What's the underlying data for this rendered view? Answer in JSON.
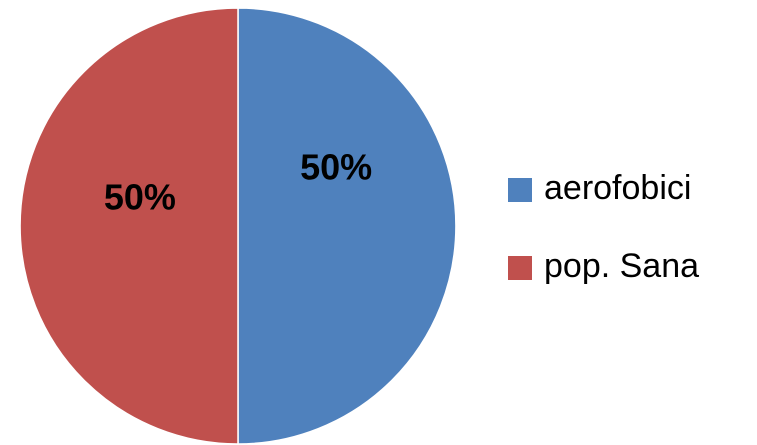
{
  "chart_data": {
    "type": "pie",
    "categories": [
      "aerofobici",
      "pop. Sana"
    ],
    "values": [
      50,
      50
    ],
    "data_labels": [
      "50%",
      "50%"
    ],
    "colors": [
      "#4F81BD",
      "#C0504D"
    ],
    "legend_position": "right"
  }
}
